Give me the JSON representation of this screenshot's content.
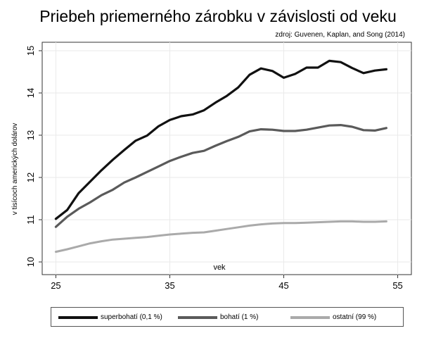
{
  "chart_data": {
    "type": "line",
    "title": "Priebeh priemerného zárobku v závislosti od veku",
    "subtitle": "zdroj: Guvenen, Kaplan, and Song (2014)",
    "xlabel": "vek",
    "ylabel": "v tisícoch amerických dolárov",
    "xlim": [
      25,
      55
    ],
    "ylim": [
      10,
      15
    ],
    "x_ticks": [
      "25",
      "35",
      "45",
      "55"
    ],
    "y_ticks": [
      "10",
      "11",
      "12",
      "13",
      "14",
      "15"
    ],
    "grid": true,
    "legend_position": "bottom",
    "x": [
      25,
      26,
      27,
      28,
      29,
      30,
      31,
      32,
      33,
      34,
      35,
      36,
      37,
      38,
      39,
      40,
      41,
      42,
      43,
      44,
      45,
      46,
      47,
      48,
      49,
      50,
      51,
      52,
      53,
      54
    ],
    "series": [
      {
        "name": "superbohatí (0,1 %)",
        "color": "#111111",
        "values": [
          11.02,
          11.23,
          11.63,
          11.9,
          12.17,
          12.42,
          12.65,
          12.87,
          12.99,
          13.21,
          13.36,
          13.45,
          13.49,
          13.59,
          13.77,
          13.93,
          14.13,
          14.43,
          14.58,
          14.52,
          14.36,
          14.45,
          14.6,
          14.6,
          14.76,
          14.73,
          14.59,
          14.47,
          14.53,
          14.56
        ]
      },
      {
        "name": "bohatí (1 %)",
        "color": "#5a5a5a",
        "values": [
          10.83,
          11.07,
          11.26,
          11.41,
          11.58,
          11.71,
          11.88,
          12.0,
          12.13,
          12.26,
          12.39,
          12.49,
          12.58,
          12.63,
          12.75,
          12.86,
          12.96,
          13.09,
          13.14,
          13.13,
          13.1,
          13.1,
          13.13,
          13.18,
          13.23,
          13.24,
          13.2,
          13.12,
          13.11,
          13.17
        ]
      },
      {
        "name": "ostatní (99 %)",
        "color": "#aaaaaa",
        "values": [
          10.24,
          10.3,
          10.37,
          10.44,
          10.49,
          10.53,
          10.55,
          10.57,
          10.59,
          10.62,
          10.65,
          10.67,
          10.69,
          10.7,
          10.74,
          10.78,
          10.82,
          10.86,
          10.89,
          10.91,
          10.92,
          10.92,
          10.93,
          10.94,
          10.95,
          10.96,
          10.96,
          10.95,
          10.95,
          10.96
        ]
      }
    ]
  }
}
